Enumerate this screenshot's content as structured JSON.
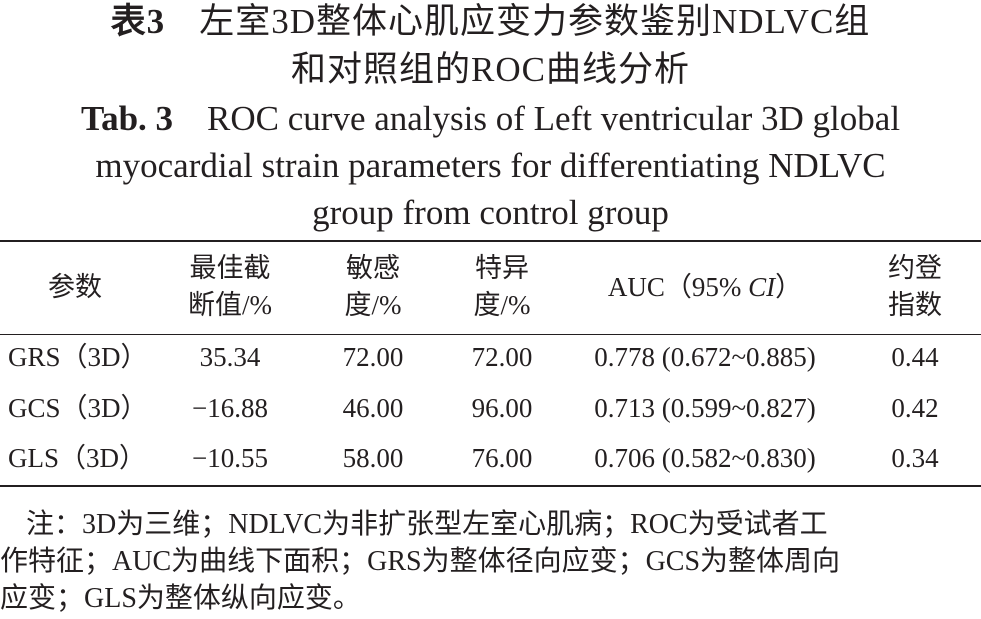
{
  "title_zh": {
    "label": "表3",
    "line1": "左室3D整体心肌应变力参数鉴别NDLVC组",
    "line2": "和对照组的ROC曲线分析"
  },
  "title_en": {
    "label": "Tab. 3",
    "line1": "ROC curve analysis of Left ventricular 3D global",
    "line2": "myocardial strain parameters for differentiating NDLVC",
    "line3": "group from control group"
  },
  "table": {
    "headers": [
      {
        "line1": "参数",
        "line2": ""
      },
      {
        "line1": "最佳截",
        "line2": "断值/%"
      },
      {
        "line1": "敏感",
        "line2": "度/%"
      },
      {
        "line1": "特异",
        "line2": "度/%"
      },
      {
        "line1": "AUC（95% ",
        "italic": "CI",
        "line1_end": "）"
      },
      {
        "line1": "约登",
        "line2": "指数"
      }
    ],
    "rows": [
      [
        "GRS（3D）",
        "35.34",
        "72.00",
        "72.00",
        "0.778 (0.672~0.885)",
        "0.44"
      ],
      [
        "GCS（3D）",
        "−16.88",
        "46.00",
        "96.00",
        "0.713 (0.599~0.827)",
        "0.42"
      ],
      [
        "GLS（3D）",
        "−10.55",
        "58.00",
        "76.00",
        "0.706 (0.582~0.830)",
        "0.34"
      ]
    ]
  },
  "note": {
    "line1": "注：3D为三维；NDLVC为非扩张型左室心肌病；ROC为受试者工",
    "line2": "作特征；AUC为曲线下面积；GRS为整体径向应变；GCS为整体周向",
    "line3": "应变；GLS为整体纵向应变。"
  }
}
